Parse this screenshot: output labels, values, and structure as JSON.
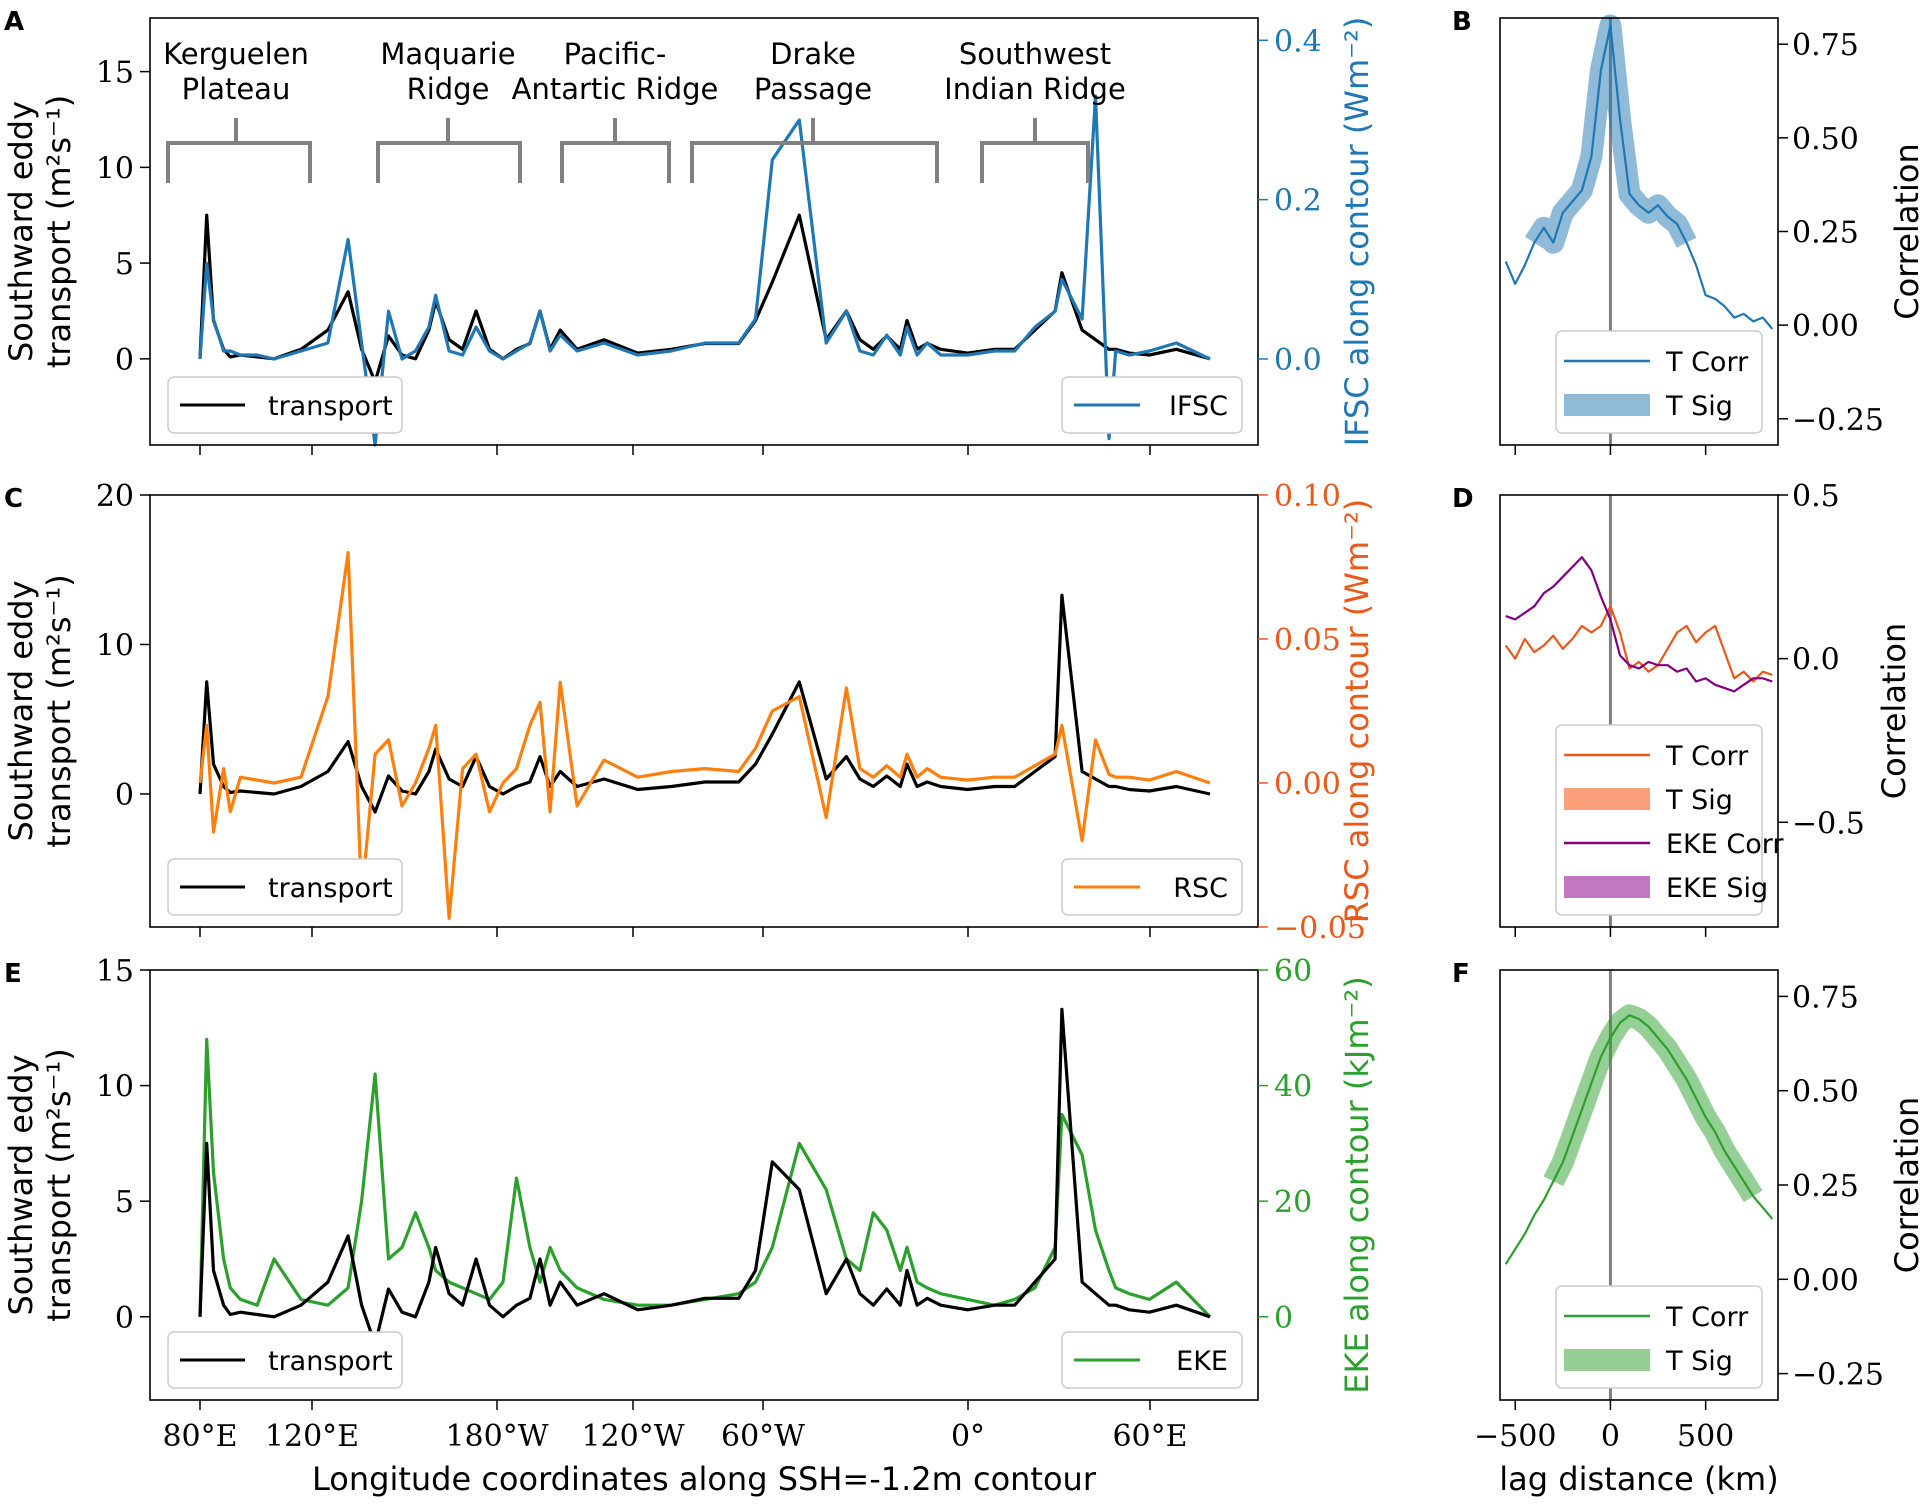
{
  "colors": {
    "transport": "#000000",
    "ifsc": "#1f77b4",
    "rsc": "#ff7f0e",
    "rsc_axis": "#e8591a",
    "eke": "#2ca02c",
    "eke_corr": "#800080",
    "eke_sig": "#c079c0",
    "t_sig_rsc": "#f9a07a",
    "bracket": "#808080",
    "zero_line": "#808080"
  },
  "xlabel": "Longitude coordinates along SSH=-1.2m contour",
  "lon_ticks": [
    "80°E",
    "120°E",
    "180°W",
    "120°W",
    "60°W",
    "0°",
    "60°E"
  ],
  "ridges": [
    {
      "line1": "Kerguelen",
      "line2": "Plateau"
    },
    {
      "line1": "Maquarie",
      "line2": "Ridge"
    },
    {
      "line1": "Pacific-",
      "line2": "Antartic Ridge"
    },
    {
      "line1": "Drake",
      "line2": "Passage"
    },
    {
      "line1": "Southwest",
      "line2": "Indian Ridge"
    }
  ],
  "chart_data": [
    {
      "panel": "A",
      "type": "line",
      "ylabel_left": [
        "Southward eddy",
        "transport (m²s⁻¹)"
      ],
      "ylabel_right": "IFSC along contour (Wm⁻²)",
      "ylim_left": [
        -4.5,
        17.8
      ],
      "yticks_left": [
        "0",
        "5",
        "10",
        "15"
      ],
      "ylim_right": [
        -0.108,
        0.428
      ],
      "yticks_right": [
        "0.0",
        "0.2",
        "0.4"
      ],
      "legend": [
        {
          "label": "transport"
        },
        {
          "label": "IFSC"
        }
      ],
      "x": [
        0,
        2,
        4,
        7,
        9,
        12,
        17,
        22,
        30,
        38,
        44,
        48,
        52,
        56,
        60,
        64,
        68,
        70,
        74,
        78,
        82,
        86,
        90,
        94,
        98,
        101,
        104,
        107,
        112,
        120,
        130,
        140,
        150,
        160,
        165,
        170,
        178,
        186,
        192,
        196,
        200,
        204,
        208,
        210,
        213,
        216,
        220,
        228,
        236,
        242,
        248,
        254,
        256,
        262,
        266,
        270,
        272,
        276,
        282,
        290,
        300
      ],
      "series": [
        {
          "name": "transport",
          "values": [
            0,
            7.5,
            2,
            0.5,
            0.1,
            0.2,
            0.1,
            0,
            0.5,
            1.5,
            3.5,
            0.5,
            -1.2,
            1.2,
            0.2,
            0,
            1.5,
            3,
            1,
            0.5,
            2.5,
            0.5,
            0,
            0.5,
            0.8,
            2.5,
            0.5,
            1.5,
            0.5,
            1,
            0.3,
            0.5,
            0.8,
            0.8,
            2,
            4,
            7.5,
            1,
            2.5,
            1,
            0.5,
            1.2,
            0.5,
            2,
            0.5,
            0.8,
            0.5,
            0.3,
            0.5,
            0.5,
            1.5,
            2.5,
            4.5,
            1.5,
            1,
            0.5,
            0.5,
            0.3,
            0.2,
            0.5,
            0
          ]
        },
        {
          "name": "IFSC",
          "values": [
            0,
            0.12,
            0.05,
            0.01,
            0.01,
            0.005,
            0.005,
            0,
            0.01,
            0.02,
            0.15,
            0.02,
            -0.108,
            0.06,
            0,
            0.01,
            0.04,
            0.08,
            0.01,
            0.005,
            0.04,
            0.01,
            0,
            0.01,
            0.02,
            0.06,
            0.01,
            0.03,
            0.01,
            0.02,
            0.005,
            0.01,
            0.02,
            0.02,
            0.05,
            0.25,
            0.3,
            0.02,
            0.06,
            0.01,
            0.005,
            0.03,
            0.005,
            0.04,
            0.005,
            0.02,
            0.005,
            0.005,
            0.01,
            0.01,
            0.04,
            0.06,
            0.1,
            0.05,
            0.33,
            -0.1,
            0.01,
            0.005,
            0.01,
            0.02,
            0
          ]
        }
      ]
    },
    {
      "panel": "C",
      "type": "line",
      "ylabel_left": [
        "Southward eddy",
        "transport (m²s⁻¹)"
      ],
      "ylabel_right": "RSC along contour (Wm⁻²)",
      "ylim_left": [
        -8.9,
        20
      ],
      "yticks_left": [
        "0",
        "10",
        "20"
      ],
      "ylim_right": [
        -0.05,
        0.1
      ],
      "yticks_right": [
        "−0.05",
        "0.00",
        "0.05",
        "0.10"
      ],
      "legend": [
        {
          "label": "transport"
        },
        {
          "label": "RSC"
        }
      ],
      "x": [
        0,
        2,
        4,
        7,
        9,
        12,
        17,
        22,
        30,
        38,
        44,
        48,
        52,
        56,
        60,
        64,
        68,
        70,
        74,
        78,
        82,
        86,
        90,
        94,
        98,
        101,
        104,
        107,
        112,
        120,
        130,
        140,
        150,
        160,
        165,
        170,
        178,
        186,
        192,
        196,
        200,
        204,
        208,
        210,
        213,
        216,
        220,
        228,
        236,
        242,
        248,
        254,
        256,
        262,
        266,
        270,
        272,
        276,
        282,
        290,
        300
      ],
      "series": [
        {
          "name": "transport",
          "values": [
            0,
            7.5,
            2,
            0.5,
            0.1,
            0.2,
            0.1,
            0,
            0.5,
            1.5,
            3.5,
            0.5,
            -1.2,
            1.2,
            0.2,
            0,
            1.5,
            3,
            1,
            0.5,
            2.5,
            0.5,
            0,
            0.5,
            0.8,
            2.5,
            0.5,
            1.5,
            0.5,
            1,
            0.3,
            0.5,
            0.8,
            0.8,
            2,
            4,
            7.5,
            1,
            2.5,
            1,
            0.5,
            1.2,
            0.5,
            2,
            0.5,
            0.8,
            0.5,
            0.3,
            0.5,
            0.5,
            1.5,
            2.5,
            13.3,
            1.5,
            1,
            0.5,
            0.5,
            0.3,
            0.2,
            0.5,
            0
          ]
        },
        {
          "name": "RSC",
          "values": [
            0,
            0.02,
            -0.017,
            0.005,
            -0.01,
            0.002,
            0.001,
            0,
            0.002,
            0.03,
            0.08,
            -0.04,
            0.01,
            0.015,
            -0.008,
            0,
            0.012,
            0.02,
            -0.047,
            0.005,
            0.01,
            -0.01,
            0,
            0.005,
            0.02,
            0.028,
            -0.01,
            0.035,
            -0.008,
            0.008,
            0.002,
            0.004,
            0.005,
            0.004,
            0.012,
            0.025,
            0.03,
            -0.012,
            0.033,
            0.005,
            0.002,
            0.006,
            0.002,
            0.01,
            0.002,
            0.005,
            0.002,
            0.001,
            0.002,
            0.002,
            0.006,
            0.01,
            0.02,
            -0.02,
            0.015,
            0.003,
            0.002,
            0.002,
            0.001,
            0.004,
            0
          ]
        }
      ]
    },
    {
      "panel": "E",
      "type": "line",
      "ylabel_left": [
        "Southward eddy",
        "transport (m²s⁻¹)"
      ],
      "ylabel_right": "EKE along contour (kJm⁻²)",
      "ylim_left": [
        -3.6,
        15
      ],
      "yticks_left": [
        "0",
        "5",
        "10",
        "15"
      ],
      "ylim_right": [
        -14.4,
        60
      ],
      "yticks_right": [
        "0",
        "20",
        "40",
        "60"
      ],
      "legend": [
        {
          "label": "transport"
        },
        {
          "label": "EKE"
        }
      ],
      "x": [
        0,
        2,
        4,
        7,
        9,
        12,
        17,
        22,
        30,
        38,
        44,
        48,
        52,
        56,
        60,
        64,
        68,
        70,
        74,
        78,
        82,
        86,
        90,
        94,
        98,
        101,
        104,
        107,
        112,
        120,
        130,
        140,
        150,
        160,
        165,
        170,
        178,
        186,
        192,
        196,
        200,
        204,
        208,
        210,
        213,
        216,
        220,
        228,
        236,
        242,
        248,
        254,
        256,
        262,
        266,
        270,
        272,
        276,
        282,
        290,
        300
      ],
      "series": [
        {
          "name": "transport",
          "values": [
            0,
            7.5,
            2,
            0.5,
            0.1,
            0.2,
            0.1,
            0,
            0.5,
            1.5,
            3.5,
            0.5,
            -1.2,
            1.2,
            0.2,
            0,
            1.5,
            3,
            1,
            0.5,
            2.5,
            0.5,
            0,
            0.5,
            0.8,
            2.5,
            0.5,
            1.5,
            0.5,
            1,
            0.3,
            0.5,
            0.8,
            0.8,
            2,
            6.7,
            5.5,
            1,
            2.5,
            1,
            0.5,
            1.2,
            0.5,
            2,
            0.5,
            0.8,
            0.5,
            0.3,
            0.5,
            0.5,
            1.5,
            2.5,
            13.3,
            1.5,
            1,
            0.5,
            0.5,
            0.3,
            0.2,
            0.5,
            0
          ]
        },
        {
          "name": "EKE",
          "values": [
            0,
            48,
            25,
            10,
            5,
            3,
            2,
            10,
            3,
            2,
            5,
            20,
            42,
            10,
            12,
            18,
            12,
            8,
            6,
            5,
            4,
            3,
            6,
            24,
            12,
            6,
            12,
            8,
            5,
            3,
            2,
            2,
            3,
            4,
            6,
            12,
            30,
            22,
            10,
            8,
            18,
            15,
            8,
            12,
            6,
            5,
            4,
            3,
            2,
            3,
            5,
            12,
            35,
            28,
            15,
            8,
            5,
            4,
            3,
            6,
            0
          ]
        }
      ]
    },
    {
      "panel": "B",
      "type": "line",
      "xlabel": "lag distance (km)",
      "ylabel": "Correlation",
      "xlim": [
        -580,
        880
      ],
      "ylim": [
        -0.32,
        0.82
      ],
      "xticks": [
        -500,
        0,
        500
      ],
      "xtick_labels": [
        "−500",
        "0",
        "500"
      ],
      "yticks": [
        -0.25,
        0,
        0.25,
        0.5,
        0.75
      ],
      "ytick_labels": [
        "−0.25",
        "0.00",
        "0.25",
        "0.50",
        "0.75"
      ],
      "legend": [
        {
          "label": "T Corr"
        },
        {
          "label": "T Sig"
        }
      ],
      "x": [
        -550,
        -500,
        -450,
        -400,
        -350,
        -300,
        -250,
        -200,
        -150,
        -100,
        -50,
        0,
        50,
        100,
        150,
        200,
        250,
        300,
        350,
        400,
        450,
        500,
        550,
        600,
        650,
        700,
        750,
        800,
        850
      ],
      "series": [
        {
          "name": "T Corr",
          "values": [
            0.17,
            0.11,
            0.16,
            0.22,
            0.26,
            0.22,
            0.3,
            0.33,
            0.36,
            0.45,
            0.68,
            0.8,
            0.55,
            0.35,
            0.32,
            0.3,
            0.32,
            0.29,
            0.27,
            0.22,
            0.16,
            0.08,
            0.07,
            0.05,
            0.02,
            0.03,
            0.01,
            0.02,
            -0.01
          ]
        },
        {
          "name": "T Sig",
          "x_range": [
            -400,
            400
          ]
        }
      ]
    },
    {
      "panel": "D",
      "type": "line",
      "xlabel": "lag distance (km)",
      "ylabel": "Correlation",
      "xlim": [
        -580,
        880
      ],
      "ylim": [
        -0.82,
        0.5
      ],
      "xticks": [
        -500,
        0,
        500
      ],
      "xtick_labels": [
        "−500",
        "0",
        "500"
      ],
      "yticks": [
        -0.5,
        0,
        0.5
      ],
      "ytick_labels": [
        "−0.5",
        "0.0",
        "0.5"
      ],
      "legend": [
        {
          "label": "T Corr"
        },
        {
          "label": "T Sig"
        },
        {
          "label": "EKE Corr"
        },
        {
          "label": "EKE Sig"
        }
      ],
      "x": [
        -550,
        -500,
        -450,
        -400,
        -350,
        -300,
        -250,
        -200,
        -150,
        -100,
        -50,
        0,
        50,
        100,
        150,
        200,
        250,
        300,
        350,
        400,
        450,
        500,
        550,
        600,
        650,
        700,
        750,
        800,
        850
      ],
      "series": [
        {
          "name": "T Corr",
          "values": [
            0.04,
            0.0,
            0.06,
            0.02,
            0.04,
            0.07,
            0.03,
            0.06,
            0.1,
            0.08,
            0.1,
            0.16,
            0.08,
            -0.03,
            -0.01,
            -0.04,
            -0.02,
            0.03,
            0.08,
            0.1,
            0.05,
            0.08,
            0.1,
            0.02,
            -0.06,
            -0.04,
            -0.07,
            -0.04,
            -0.05
          ]
        },
        {
          "name": "EKE Corr",
          "values": [
            0.13,
            0.12,
            0.14,
            0.16,
            0.2,
            0.22,
            0.25,
            0.28,
            0.31,
            0.27,
            0.19,
            0.12,
            0.01,
            -0.02,
            -0.03,
            -0.01,
            -0.02,
            -0.02,
            -0.04,
            -0.03,
            -0.07,
            -0.06,
            -0.08,
            -0.09,
            -0.1,
            -0.08,
            -0.06,
            -0.06,
            -0.07
          ]
        },
        {
          "name": "T Sig",
          "x_range": null
        },
        {
          "name": "EKE Sig",
          "x_range": null
        }
      ]
    },
    {
      "panel": "F",
      "type": "line",
      "xlabel": "lag distance (km)",
      "ylabel": "Correlation",
      "xlim": [
        -580,
        880
      ],
      "ylim": [
        -0.32,
        0.82
      ],
      "xticks": [
        -500,
        0,
        500
      ],
      "xtick_labels": [
        "−500",
        "0",
        "500"
      ],
      "yticks": [
        -0.25,
        0,
        0.25,
        0.5,
        0.75
      ],
      "ytick_labels": [
        "−0.25",
        "0.00",
        "0.25",
        "0.50",
        "0.75"
      ],
      "legend": [
        {
          "label": "T Corr"
        },
        {
          "label": "T Sig"
        }
      ],
      "x": [
        -550,
        -500,
        -450,
        -400,
        -350,
        -300,
        -250,
        -200,
        -150,
        -100,
        -50,
        0,
        50,
        100,
        150,
        200,
        250,
        300,
        350,
        400,
        450,
        500,
        550,
        600,
        650,
        700,
        750,
        800,
        850
      ],
      "series": [
        {
          "name": "T Corr",
          "values": [
            0.04,
            0.08,
            0.12,
            0.17,
            0.21,
            0.26,
            0.31,
            0.38,
            0.45,
            0.52,
            0.59,
            0.64,
            0.68,
            0.7,
            0.69,
            0.67,
            0.64,
            0.61,
            0.57,
            0.53,
            0.48,
            0.43,
            0.39,
            0.34,
            0.3,
            0.26,
            0.22,
            0.19,
            0.16
          ]
        },
        {
          "name": "T Sig",
          "x_range": [
            -300,
            750
          ]
        }
      ]
    }
  ]
}
